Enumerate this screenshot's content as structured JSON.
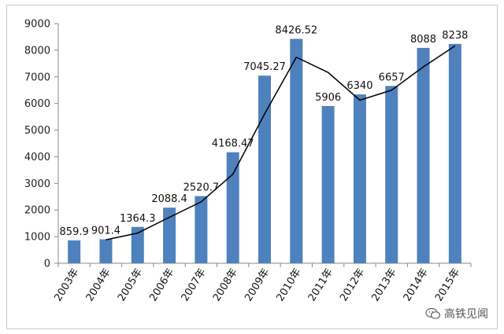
{
  "chart_data": {
    "type": "bar",
    "categories": [
      "2003年",
      "2004年",
      "2005年",
      "2006年",
      "2007年",
      "2008年",
      "2009年",
      "2010年",
      "2011年",
      "2012年",
      "2013年",
      "2014年",
      "2015年"
    ],
    "values": [
      859.9,
      901.4,
      1364.3,
      2088.4,
      2520.7,
      4168.47,
      7045.27,
      8426.52,
      5906,
      6340,
      6657,
      8088,
      8238
    ],
    "data_labels": [
      "859.9",
      "901.4",
      "1364.3",
      "2088.4",
      "2520.7",
      "4168.47",
      "7045.27",
      "8426.52",
      "5906",
      "6340",
      "6657",
      "8088",
      "8238"
    ],
    "trend_line": {
      "type": "line",
      "categories": [
        "2004年",
        "2005年",
        "2006年",
        "2007年",
        "2008年",
        "2009年",
        "2010年",
        "2011年",
        "2012年",
        "2013年",
        "2014年",
        "2015年"
      ],
      "values": [
        880.7,
        1132.9,
        1726.4,
        2304.6,
        3344.6,
        5606.9,
        7735.9,
        7166.3,
        6123,
        6498.5,
        7372.5,
        8163
      ]
    },
    "yticks": [
      "0",
      "1000",
      "2000",
      "3000",
      "4000",
      "5000",
      "6000",
      "7000",
      "8000",
      "9000"
    ],
    "ylim": [
      0,
      9000
    ],
    "grid": false,
    "legend": "none",
    "bar_color": "#4f81bd",
    "line_color": "#000000",
    "title": "",
    "xlabel": "",
    "ylabel": ""
  },
  "watermark": {
    "text": "高铁见闻",
    "icon": "wechat-icon"
  }
}
